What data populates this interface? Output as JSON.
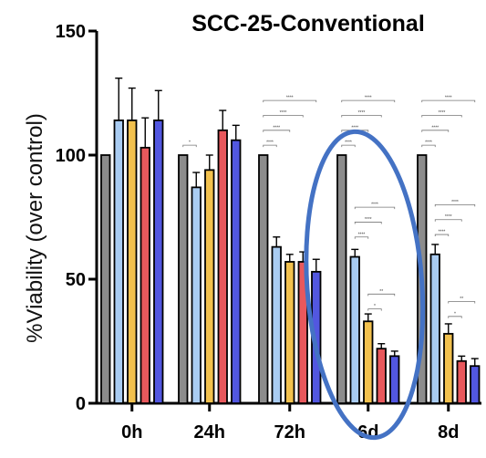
{
  "chart_data": {
    "type": "bar",
    "title": "SCC-25-Conventional",
    "ylabel": "%Viability  (over control)",
    "xlabel": "",
    "ylim": [
      0,
      150
    ],
    "yticks": [
      0,
      50,
      100,
      150
    ],
    "categories": [
      "0h",
      "24h",
      "72h",
      "6d",
      "8d"
    ],
    "colors": [
      "#8c8c8c",
      "#a9ccf2",
      "#f2c14e",
      "#e8585c",
      "#5257e0"
    ],
    "series": [
      {
        "values": [
          100,
          100,
          100,
          100,
          100
        ],
        "errors": [
          0,
          0,
          0,
          0,
          0
        ]
      },
      {
        "values": [
          114,
          87,
          63,
          59,
          60
        ],
        "errors": [
          17,
          6,
          4,
          3,
          4
        ]
      },
      {
        "values": [
          114,
          94,
          57,
          33,
          28
        ],
        "errors": [
          13,
          6,
          3,
          3,
          4
        ]
      },
      {
        "values": [
          103,
          110,
          57,
          22,
          17
        ],
        "errors": [
          12,
          8,
          4,
          2,
          2
        ]
      },
      {
        "values": [
          114,
          106,
          53,
          19,
          15
        ],
        "errors": [
          12,
          6,
          5,
          2,
          3
        ]
      }
    ],
    "significance": [
      {
        "category": 1,
        "from": 0,
        "to": 1,
        "label": "*",
        "y": 104
      },
      {
        "category": 2,
        "from": 0,
        "to": 1,
        "label": "****",
        "y": 104
      },
      {
        "category": 2,
        "from": 0,
        "to": 2,
        "label": "****",
        "y": 110
      },
      {
        "category": 2,
        "from": 0,
        "to": 3,
        "label": "****",
        "y": 116
      },
      {
        "category": 2,
        "from": 0,
        "to": 4,
        "label": "****",
        "y": 122
      },
      {
        "category": 3,
        "from": 0,
        "to": 1,
        "label": "****",
        "y": 104
      },
      {
        "category": 3,
        "from": 0,
        "to": 2,
        "label": "****",
        "y": 110
      },
      {
        "category": 3,
        "from": 0,
        "to": 3,
        "label": "****",
        "y": 116
      },
      {
        "category": 3,
        "from": 0,
        "to": 4,
        "label": "****",
        "y": 122
      },
      {
        "category": 3,
        "from": 1,
        "to": 2,
        "label": "****",
        "y": 67
      },
      {
        "category": 3,
        "from": 1,
        "to": 3,
        "label": "****",
        "y": 73
      },
      {
        "category": 3,
        "from": 1,
        "to": 4,
        "label": "****",
        "y": 79
      },
      {
        "category": 3,
        "from": 2,
        "to": 3,
        "label": "*",
        "y": 38
      },
      {
        "category": 3,
        "from": 2,
        "to": 4,
        "label": "**",
        "y": 44
      },
      {
        "category": 4,
        "from": 0,
        "to": 1,
        "label": "****",
        "y": 104
      },
      {
        "category": 4,
        "from": 0,
        "to": 2,
        "label": "****",
        "y": 110
      },
      {
        "category": 4,
        "from": 0,
        "to": 3,
        "label": "****",
        "y": 116
      },
      {
        "category": 4,
        "from": 0,
        "to": 4,
        "label": "****",
        "y": 122
      },
      {
        "category": 4,
        "from": 1,
        "to": 2,
        "label": "****",
        "y": 68
      },
      {
        "category": 4,
        "from": 1,
        "to": 3,
        "label": "****",
        "y": 74
      },
      {
        "category": 4,
        "from": 1,
        "to": 4,
        "label": "****",
        "y": 80
      },
      {
        "category": 4,
        "from": 2,
        "to": 3,
        "label": "*",
        "y": 35
      },
      {
        "category": 4,
        "from": 2,
        "to": 4,
        "label": "**",
        "y": 41
      }
    ],
    "annotation": {
      "shape": "ellipse",
      "around_category": "6d",
      "color": "#4472c4"
    },
    "grid": false,
    "legend": "none"
  }
}
